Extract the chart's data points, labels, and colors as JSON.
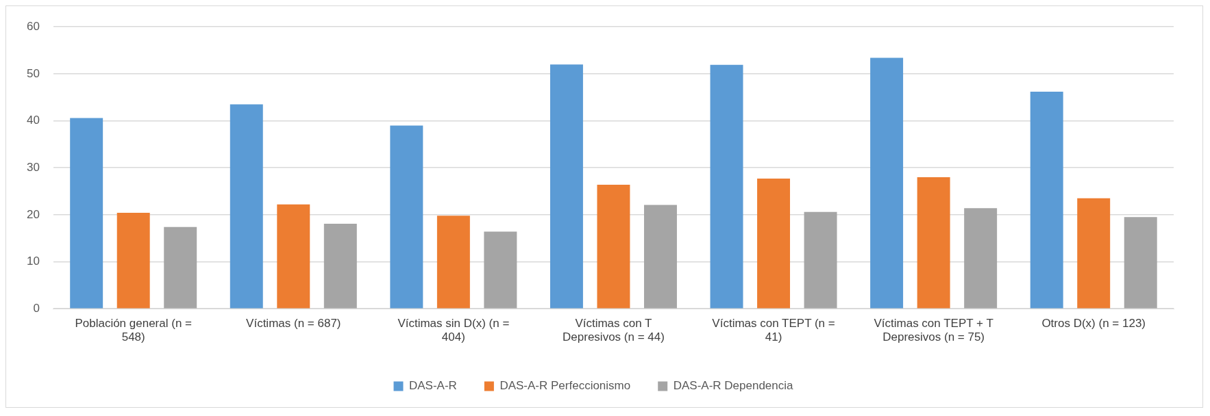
{
  "chart_data": {
    "type": "bar",
    "categories": [
      "Población general (n = 548)",
      "Víctimas (n = 687)",
      "Víctimas sin D(x) (n = 404)",
      "Víctimas con T Depresivos (n = 44)",
      "Víctimas con TEPT (n = 41)",
      "Víctimas con TEPT + T Depresivos (n = 75)",
      "Otros D(x) (n = 123)"
    ],
    "series": [
      {
        "name": "DAS-A-R",
        "color": "#5b9bd5",
        "values": [
          40.6,
          43.5,
          39.0,
          52.0,
          51.9,
          53.4,
          46.2
        ]
      },
      {
        "name": "DAS-A-R Perfeccionismo",
        "color": "#ed7d31",
        "values": [
          20.4,
          22.2,
          19.8,
          26.4,
          27.7,
          28.0,
          23.5
        ]
      },
      {
        "name": "DAS-A-R Dependencia",
        "color": "#a5a5a5",
        "values": [
          17.4,
          18.1,
          16.4,
          22.1,
          20.6,
          21.4,
          19.5
        ]
      }
    ],
    "ylim": [
      0,
      60
    ],
    "yticks": [
      0,
      10,
      20,
      30,
      40,
      50,
      60
    ],
    "grid": "y",
    "legend": "bottom"
  }
}
